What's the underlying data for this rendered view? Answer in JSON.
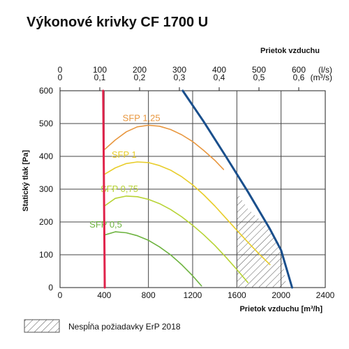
{
  "title": "Výkonové krivky CF 1700 U",
  "chart_data": {
    "type": "line",
    "title": "Výkonové krivky CF 1700 U",
    "xlabel": "Prietok vzduchu [m³/h]",
    "ylabel": "Statický tlak [Pa]",
    "top_axis_label": "Prietok vzduchu",
    "top_units": [
      "(l/s)",
      "(m³/s)"
    ],
    "xlim": [
      0,
      2400
    ],
    "ylim": [
      0,
      600
    ],
    "x_ticks": [
      0,
      400,
      800,
      1200,
      1600,
      2000,
      2400
    ],
    "x_tick_labels": [
      "0",
      "400",
      "800",
      "1200",
      "1600",
      "2000",
      "2400"
    ],
    "y_ticks": [
      0,
      100,
      200,
      300,
      400,
      500,
      600
    ],
    "y_tick_labels": [
      "0",
      "100",
      "200",
      "300",
      "400",
      "500",
      "600"
    ],
    "top_ticks_m3h": [
      0,
      360,
      720,
      1080,
      1440,
      1800,
      2160
    ],
    "top_tick_labels_ls": [
      "0",
      "100",
      "200",
      "300",
      "400",
      "500",
      "600"
    ],
    "top_tick_labels_m3s": [
      "0",
      "0,1",
      "0,2",
      "0,3",
      "0,4",
      "0,5",
      "0,6"
    ],
    "grid": true,
    "series": [
      {
        "name": "SFP 1,25",
        "color": "#e8973f",
        "points": [
          [
            400,
            420
          ],
          [
            500,
            450
          ],
          [
            600,
            475
          ],
          [
            700,
            490
          ],
          [
            800,
            495
          ],
          [
            900,
            492
          ],
          [
            1000,
            482
          ],
          [
            1100,
            466
          ],
          [
            1200,
            445
          ],
          [
            1300,
            418
          ],
          [
            1400,
            388
          ],
          [
            1480,
            360
          ]
        ]
      },
      {
        "name": "SFP 1",
        "color": "#e8cd2a",
        "points": [
          [
            400,
            345
          ],
          [
            500,
            365
          ],
          [
            600,
            378
          ],
          [
            700,
            383
          ],
          [
            800,
            381
          ],
          [
            900,
            372
          ],
          [
            1000,
            358
          ],
          [
            1100,
            338
          ],
          [
            1200,
            313
          ],
          [
            1300,
            283
          ],
          [
            1400,
            249
          ],
          [
            1500,
            212
          ],
          [
            1600,
            175
          ],
          [
            1700,
            138
          ],
          [
            1800,
            103
          ],
          [
            1900,
            70
          ]
        ]
      },
      {
        "name": "SFP 0,75",
        "color": "#b7d334",
        "points": [
          [
            400,
            248
          ],
          [
            500,
            272
          ],
          [
            600,
            279
          ],
          [
            700,
            277
          ],
          [
            800,
            269
          ],
          [
            900,
            256
          ],
          [
            1000,
            238
          ],
          [
            1100,
            216
          ],
          [
            1200,
            190
          ],
          [
            1300,
            161
          ],
          [
            1400,
            129
          ],
          [
            1500,
            93
          ],
          [
            1600,
            55
          ],
          [
            1700,
            15
          ]
        ]
      },
      {
        "name": "SFP 0,5",
        "color": "#6db33f",
        "points": [
          [
            400,
            160
          ],
          [
            500,
            170
          ],
          [
            600,
            167
          ],
          [
            700,
            158
          ],
          [
            800,
            144
          ],
          [
            900,
            124
          ],
          [
            1000,
            100
          ],
          [
            1100,
            70
          ],
          [
            1200,
            36
          ],
          [
            1280,
            5
          ]
        ]
      },
      {
        "name": "",
        "color": "#e0234b",
        "points": [
          [
            390,
            600
          ],
          [
            405,
            0
          ]
        ]
      },
      {
        "name": "",
        "color": "#1a4f8c",
        "points": [
          [
            1110,
            600
          ],
          [
            1300,
            506
          ],
          [
            1500,
            400
          ],
          [
            1700,
            292
          ],
          [
            1900,
            178
          ],
          [
            2000,
            114
          ],
          [
            2100,
            0
          ]
        ]
      }
    ],
    "hatched_region": {
      "points": [
        [
          1600,
          290
        ],
        [
          1600,
          0
        ],
        [
          2050,
          0
        ],
        [
          2000,
          114
        ],
        [
          1900,
          178
        ],
        [
          1700,
          240
        ]
      ]
    },
    "legend": {
      "label": "Nespĺňa požiadavky ErP 2018",
      "placement": "bottom-left"
    }
  }
}
